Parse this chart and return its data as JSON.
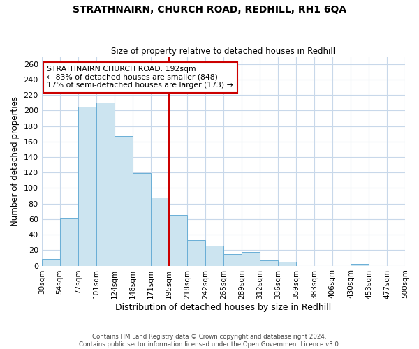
{
  "title": "STRATHNAIRN, CHURCH ROAD, REDHILL, RH1 6QA",
  "subtitle": "Size of property relative to detached houses in Redhill",
  "xlabel": "Distribution of detached houses by size in Redhill",
  "ylabel": "Number of detached properties",
  "bin_edges": [
    30,
    54,
    77,
    101,
    124,
    148,
    171,
    195,
    218,
    242,
    265,
    289,
    312,
    336,
    359,
    383,
    406,
    430,
    453,
    477,
    500
  ],
  "bin_labels": [
    "30sqm",
    "54sqm",
    "77sqm",
    "101sqm",
    "124sqm",
    "148sqm",
    "171sqm",
    "195sqm",
    "218sqm",
    "242sqm",
    "265sqm",
    "289sqm",
    "312sqm",
    "336sqm",
    "359sqm",
    "383sqm",
    "406sqm",
    "430sqm",
    "453sqm",
    "477sqm",
    "500sqm"
  ],
  "bar_values": [
    9,
    61,
    205,
    210,
    167,
    119,
    88,
    65,
    33,
    26,
    15,
    18,
    7,
    5,
    0,
    0,
    0,
    2,
    0,
    0
  ],
  "bar_color": "#cce4f0",
  "bar_edge_color": "#6aaed6",
  "vline_bin_index": 7,
  "vline_color": "#cc0000",
  "annotation_title": "STRATHNAIRN CHURCH ROAD: 192sqm",
  "annotation_line1": "← 83% of detached houses are smaller (848)",
  "annotation_line2": "17% of semi-detached houses are larger (173) →",
  "ylim": [
    0,
    270
  ],
  "yticks": [
    0,
    20,
    40,
    60,
    80,
    100,
    120,
    140,
    160,
    180,
    200,
    220,
    240,
    260
  ],
  "footer_line1": "Contains HM Land Registry data © Crown copyright and database right 2024.",
  "footer_line2": "Contains public sector information licensed under the Open Government Licence v3.0.",
  "background_color": "#ffffff",
  "grid_color": "#c8d8ea"
}
